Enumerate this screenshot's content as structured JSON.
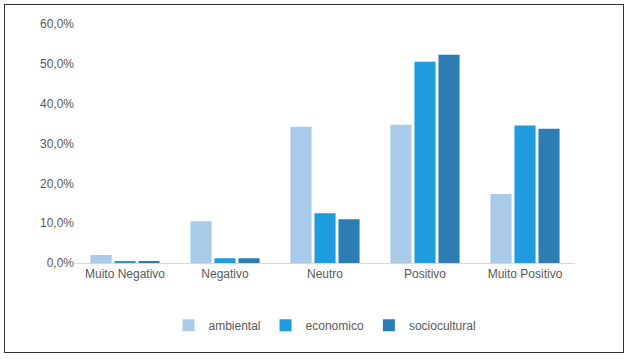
{
  "chart_data": {
    "type": "bar",
    "categories": [
      "Muito Negativo",
      "Negativo",
      "Neutro",
      "Positivo",
      "Muito Positivo"
    ],
    "series": [
      {
        "name": "ambiental",
        "color": "#a9cbe9",
        "values": [
          2.0,
          10.5,
          34.2,
          34.7,
          17.3
        ]
      },
      {
        "name": "economico",
        "color": "#1f9cde",
        "values": [
          0.5,
          1.2,
          12.5,
          50.5,
          34.5
        ]
      },
      {
        "name": "sociocultural",
        "color": "#2b7db3",
        "values": [
          0.5,
          1.2,
          11.0,
          52.3,
          33.7
        ]
      }
    ],
    "ylim": [
      0,
      60
    ],
    "yticks": [
      {
        "value": 0,
        "label": "0,0%"
      },
      {
        "value": 10,
        "label": "10,0%"
      },
      {
        "value": 20,
        "label": "20,0%"
      },
      {
        "value": 30,
        "label": "30,0%"
      },
      {
        "value": 40,
        "label": "40,0%"
      },
      {
        "value": 50,
        "label": "50,0%"
      },
      {
        "value": 60,
        "label": "60,0%"
      }
    ],
    "grid": false,
    "legend": "bottom"
  }
}
